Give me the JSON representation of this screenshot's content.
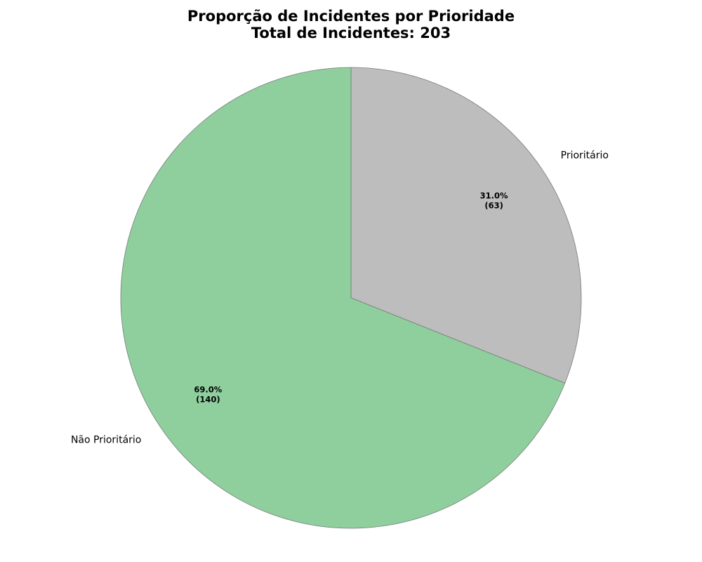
{
  "chart_data": {
    "type": "pie",
    "title": "Proporção de Incidentes por Prioridade",
    "subtitle": "Total de Incidentes: 203",
    "start_angle_deg": 90,
    "direction": "clockwise",
    "slices": [
      {
        "label": "Prioritário",
        "value": 63,
        "percent_label": "31.0%",
        "count_label": "(63)",
        "color": "#bdbdbd"
      },
      {
        "label": "Não Prioritário",
        "value": 140,
        "percent_label": "69.0%",
        "count_label": "(140)",
        "color": "#8fcf9e"
      }
    ],
    "edge_color": "#7a7a7a"
  }
}
